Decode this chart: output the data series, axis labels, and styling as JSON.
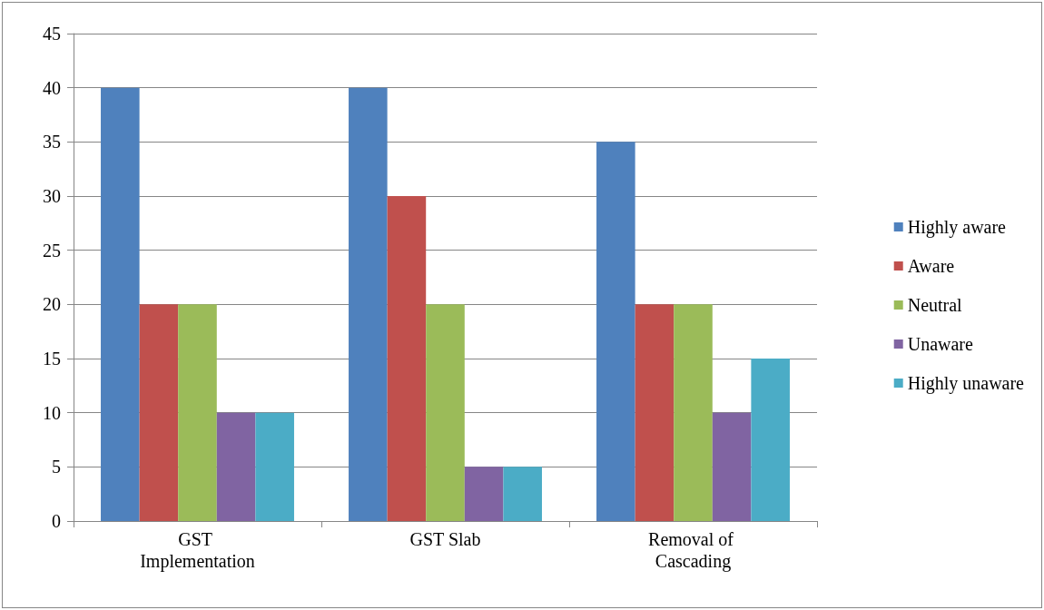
{
  "chart_data": {
    "type": "bar",
    "categories": [
      "GST Implementation",
      "GST Slab",
      "Removal of Cascading"
    ],
    "series": [
      {
        "name": "Highly aware",
        "color": "#4f81bd",
        "values": [
          40,
          40,
          35
        ]
      },
      {
        "name": "Aware",
        "color": "#c0504d",
        "values": [
          20,
          30,
          20
        ]
      },
      {
        "name": "Neutral",
        "color": "#9bbb59",
        "values": [
          20,
          20,
          20
        ]
      },
      {
        "name": "Unaware",
        "color": "#8064a2",
        "values": [
          10,
          5,
          10
        ]
      },
      {
        "name": "Highly unaware",
        "color": "#4bacc6",
        "values": [
          10,
          5,
          15
        ]
      }
    ],
    "ylim": [
      0,
      45
    ],
    "yticks": [
      0,
      5,
      10,
      15,
      20,
      25,
      30,
      35,
      40,
      45
    ],
    "grid": "y",
    "legend": "right"
  }
}
